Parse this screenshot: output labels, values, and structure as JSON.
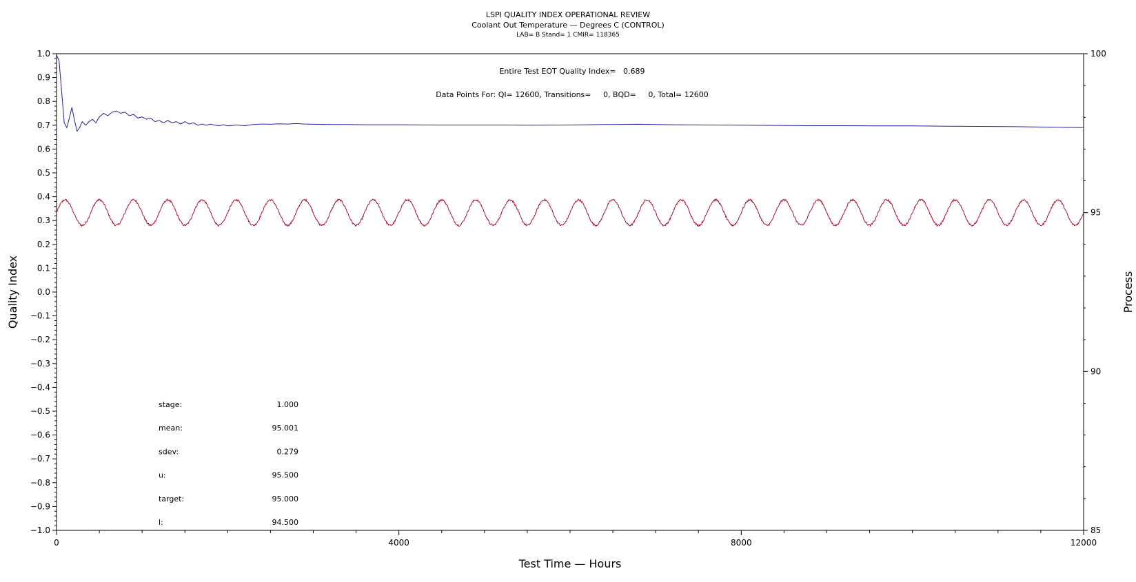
{
  "chart_data": {
    "type": "line",
    "title": "LSPI QUALITY INDEX OPERATIONAL REVIEW",
    "subtitle": "Coolant Out Temperature — Degrees C (CONTROL)",
    "subsubtitle": "LAB= B Stand= 1 CMIR= 118365",
    "xlabel": "Test Time — Hours",
    "ylabel_left": "Quality Index",
    "ylabel_right": "Process",
    "xlim": [
      0,
      12000
    ],
    "ylim_left": [
      -1.0,
      1.0
    ],
    "ylim_right": [
      85,
      100
    ],
    "x_ticks": [
      0,
      4000,
      8000,
      12000
    ],
    "y_ticks_left": [
      "1.0",
      "0.9",
      "0.8",
      "0.7",
      "0.6",
      "0.5",
      "0.4",
      "0.3",
      "0.2",
      "0.1",
      "0.0",
      "−0.1",
      "−0.2",
      "−0.3",
      "−0.4",
      "−0.5",
      "−0.6",
      "−0.7",
      "−0.8",
      "−0.9",
      "−1.0"
    ],
    "y_ticks_right": [
      100,
      95,
      90,
      85
    ],
    "grid": false,
    "annotations": {
      "eot_line": "Entire Test EOT Quality Index=   0.689",
      "data_points_line": "Data Points For: QI= 12600, Transitions=     0, BQD=     0, Total= 12600"
    },
    "stats": [
      {
        "label": "stage:",
        "value": "1.000"
      },
      {
        "label": "mean:",
        "value": "95.001"
      },
      {
        "label": "sdev:",
        "value": "0.279"
      },
      {
        "label": "u:",
        "value": "95.500"
      },
      {
        "label": "target:",
        "value": "95.000"
      },
      {
        "label": "l:",
        "value": "94.500"
      }
    ],
    "series": [
      {
        "axis": "left",
        "color": "#1f1fa0",
        "x": [
          0,
          30,
          60,
          90,
          120,
          150,
          180,
          210,
          240,
          270,
          300,
          340,
          380,
          420,
          460,
          500,
          550,
          600,
          650,
          700,
          750,
          800,
          850,
          900,
          950,
          1000,
          1050,
          1100,
          1150,
          1200,
          1250,
          1300,
          1350,
          1400,
          1450,
          1500,
          1550,
          1600,
          1650,
          1700,
          1750,
          1800,
          1850,
          1900,
          1950,
          2000,
          2100,
          2200,
          2300,
          2400,
          2500,
          2600,
          2700,
          2800,
          2900,
          3000,
          3200,
          3400,
          3600,
          3800,
          4000,
          4400,
          4800,
          5200,
          5600,
          6000,
          6400,
          6800,
          7200,
          7600,
          8000,
          8400,
          8800,
          9200,
          9600,
          10000,
          10400,
          10800,
          11200,
          11600,
          12000
        ],
        "values": [
          0.995,
          0.97,
          0.84,
          0.71,
          0.69,
          0.73,
          0.775,
          0.72,
          0.675,
          0.69,
          0.715,
          0.7,
          0.715,
          0.725,
          0.71,
          0.735,
          0.75,
          0.74,
          0.755,
          0.76,
          0.75,
          0.755,
          0.74,
          0.745,
          0.73,
          0.735,
          0.725,
          0.73,
          0.715,
          0.72,
          0.71,
          0.72,
          0.71,
          0.715,
          0.705,
          0.715,
          0.705,
          0.71,
          0.7,
          0.705,
          0.7,
          0.705,
          0.7,
          0.698,
          0.702,
          0.697,
          0.701,
          0.698,
          0.703,
          0.705,
          0.704,
          0.706,
          0.705,
          0.707,
          0.705,
          0.704,
          0.703,
          0.703,
          0.702,
          0.702,
          0.702,
          0.701,
          0.701,
          0.701,
          0.7,
          0.701,
          0.703,
          0.704,
          0.702,
          0.701,
          0.7,
          0.699,
          0.698,
          0.698,
          0.697,
          0.697,
          0.696,
          0.695,
          0.694,
          0.692,
          0.69
        ]
      },
      {
        "axis": "right",
        "color": "#b01030",
        "model": {
          "type": "sine",
          "center": 95.0,
          "amplitude": 0.4,
          "period_hours": 400,
          "phase_x": 0,
          "noise": 0.06
        },
        "x_range": [
          0,
          12000
        ]
      }
    ]
  }
}
